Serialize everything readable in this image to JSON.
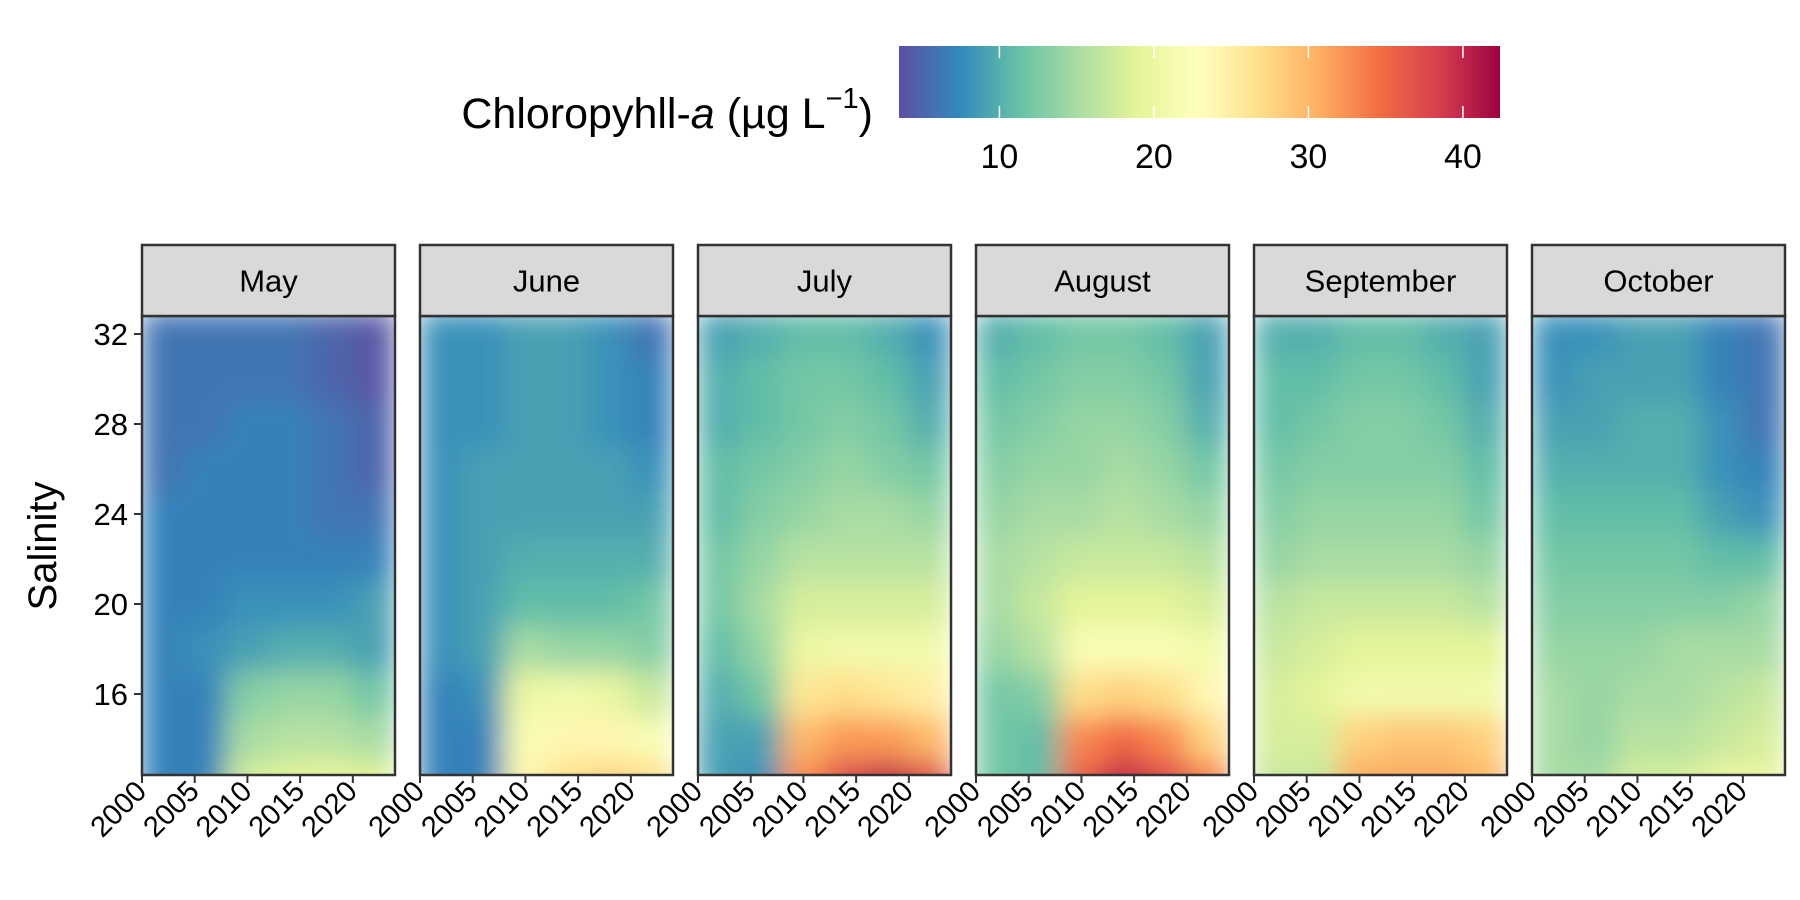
{
  "chart_data": {
    "type": "heatmap",
    "colorbar": {
      "title": [
        "Chloropyhll-",
        "a",
        "(µg L",
        "−1",
        ")"
      ],
      "lim": [
        3.5,
        42.4
      ],
      "ticks": [
        10,
        20,
        30,
        40
      ],
      "colors": [
        "#5e4fa2",
        "#3288bd",
        "#66c2a5",
        "#abdda4",
        "#e6f598",
        "#ffffbf",
        "#fee08b",
        "#fdae61",
        "#f46d43",
        "#d53e4f",
        "#9e0142"
      ]
    },
    "y_label": "Salinity",
    "x": [
      2002,
      2006,
      2010,
      2014,
      2018,
      2022
    ],
    "y": [
      12,
      14,
      16,
      18,
      20,
      22,
      24,
      26,
      28,
      30,
      32
    ],
    "xlim": [
      2000,
      2024
    ],
    "xticks": [
      2000,
      2005,
      2010,
      2015,
      2020
    ],
    "ylim": [
      12.4,
      32.8
    ],
    "yticks": [
      16,
      20,
      24,
      28,
      32
    ],
    "panels": [
      {
        "title": "May",
        "values": [
          [
            7,
            7,
            18,
            19,
            20,
            19
          ],
          [
            7,
            7,
            15,
            16,
            16,
            15
          ],
          [
            7,
            7,
            13,
            14,
            14,
            12
          ],
          [
            7,
            8,
            9,
            10,
            10,
            9
          ],
          [
            7,
            7,
            8,
            8,
            8,
            9
          ],
          [
            7,
            7,
            7,
            7,
            7,
            7
          ],
          [
            7,
            7,
            7,
            7,
            6,
            6
          ],
          [
            6,
            7,
            7,
            7,
            6,
            5
          ],
          [
            6,
            6,
            7,
            7,
            6,
            5
          ],
          [
            6,
            6,
            6,
            6,
            5,
            4
          ],
          [
            6,
            6,
            6,
            6,
            5,
            4
          ]
        ]
      },
      {
        "title": "June",
        "values": [
          [
            7,
            7,
            24,
            27,
            28,
            27
          ],
          [
            7,
            7,
            22,
            24,
            24,
            22
          ],
          [
            7,
            8,
            20,
            21,
            20,
            17
          ],
          [
            8,
            9,
            15,
            14,
            14,
            13
          ],
          [
            8,
            9,
            11,
            11,
            11,
            12
          ],
          [
            8,
            9,
            10,
            10,
            10,
            10
          ],
          [
            8,
            9,
            9,
            9,
            9,
            9
          ],
          [
            8,
            9,
            9,
            9,
            9,
            8
          ],
          [
            8,
            8,
            9,
            9,
            8,
            7
          ],
          [
            8,
            8,
            9,
            9,
            8,
            7
          ],
          [
            8,
            8,
            9,
            9,
            8,
            6
          ]
        ]
      },
      {
        "title": "July",
        "values": [
          [
            9,
            8,
            33,
            38,
            40,
            38
          ],
          [
            9,
            9,
            30,
            32,
            32,
            30
          ],
          [
            10,
            12,
            26,
            27,
            26,
            25
          ],
          [
            11,
            14,
            20,
            21,
            21,
            21
          ],
          [
            12,
            15,
            18,
            18,
            18,
            18
          ],
          [
            12,
            14,
            16,
            16,
            16,
            16
          ],
          [
            11,
            13,
            14,
            15,
            15,
            14
          ],
          [
            11,
            12,
            13,
            14,
            13,
            12
          ],
          [
            10,
            11,
            12,
            13,
            12,
            10
          ],
          [
            10,
            11,
            12,
            12,
            11,
            9
          ],
          [
            9,
            10,
            11,
            11,
            10,
            8
          ]
        ]
      },
      {
        "title": "August",
        "values": [
          [
            12,
            11,
            36,
            40,
            38,
            34
          ],
          [
            12,
            11,
            33,
            35,
            33,
            28
          ],
          [
            12,
            13,
            27,
            28,
            27,
            24
          ],
          [
            14,
            16,
            22,
            22,
            22,
            21
          ],
          [
            15,
            17,
            19,
            19,
            19,
            18
          ],
          [
            15,
            16,
            17,
            17,
            17,
            16
          ],
          [
            14,
            15,
            15,
            16,
            15,
            14
          ],
          [
            13,
            14,
            14,
            15,
            14,
            12
          ],
          [
            12,
            13,
            14,
            14,
            13,
            10
          ],
          [
            11,
            12,
            13,
            13,
            12,
            9
          ],
          [
            10,
            11,
            12,
            12,
            11,
            9
          ]
        ]
      },
      {
        "title": "September",
        "values": [
          [
            17,
            17,
            31,
            31,
            31,
            30
          ],
          [
            18,
            18,
            28,
            29,
            29,
            28
          ],
          [
            18,
            19,
            21,
            21,
            21,
            21
          ],
          [
            17,
            18,
            19,
            19,
            19,
            19
          ],
          [
            16,
            17,
            17,
            17,
            17,
            16
          ],
          [
            14,
            15,
            15,
            15,
            15,
            14
          ],
          [
            13,
            14,
            14,
            14,
            14,
            12
          ],
          [
            12,
            13,
            13,
            13,
            13,
            11
          ],
          [
            11,
            12,
            13,
            13,
            12,
            10
          ],
          [
            11,
            11,
            12,
            12,
            11,
            9
          ],
          [
            10,
            10,
            11,
            11,
            10,
            9
          ]
        ]
      },
      {
        "title": "October",
        "values": [
          [
            15,
            15,
            18,
            18,
            20,
            20
          ],
          [
            15,
            14,
            16,
            16,
            17,
            18
          ],
          [
            15,
            14,
            15,
            15,
            16,
            17
          ],
          [
            14,
            14,
            14,
            15,
            15,
            15
          ],
          [
            13,
            13,
            13,
            13,
            13,
            14
          ],
          [
            12,
            12,
            12,
            12,
            11,
            11
          ],
          [
            11,
            11,
            11,
            11,
            9,
            8
          ],
          [
            10,
            10,
            10,
            10,
            8,
            7
          ],
          [
            9,
            9,
            10,
            10,
            8,
            6
          ],
          [
            8,
            9,
            9,
            9,
            7,
            6
          ],
          [
            8,
            8,
            9,
            9,
            7,
            6
          ]
        ]
      }
    ]
  }
}
